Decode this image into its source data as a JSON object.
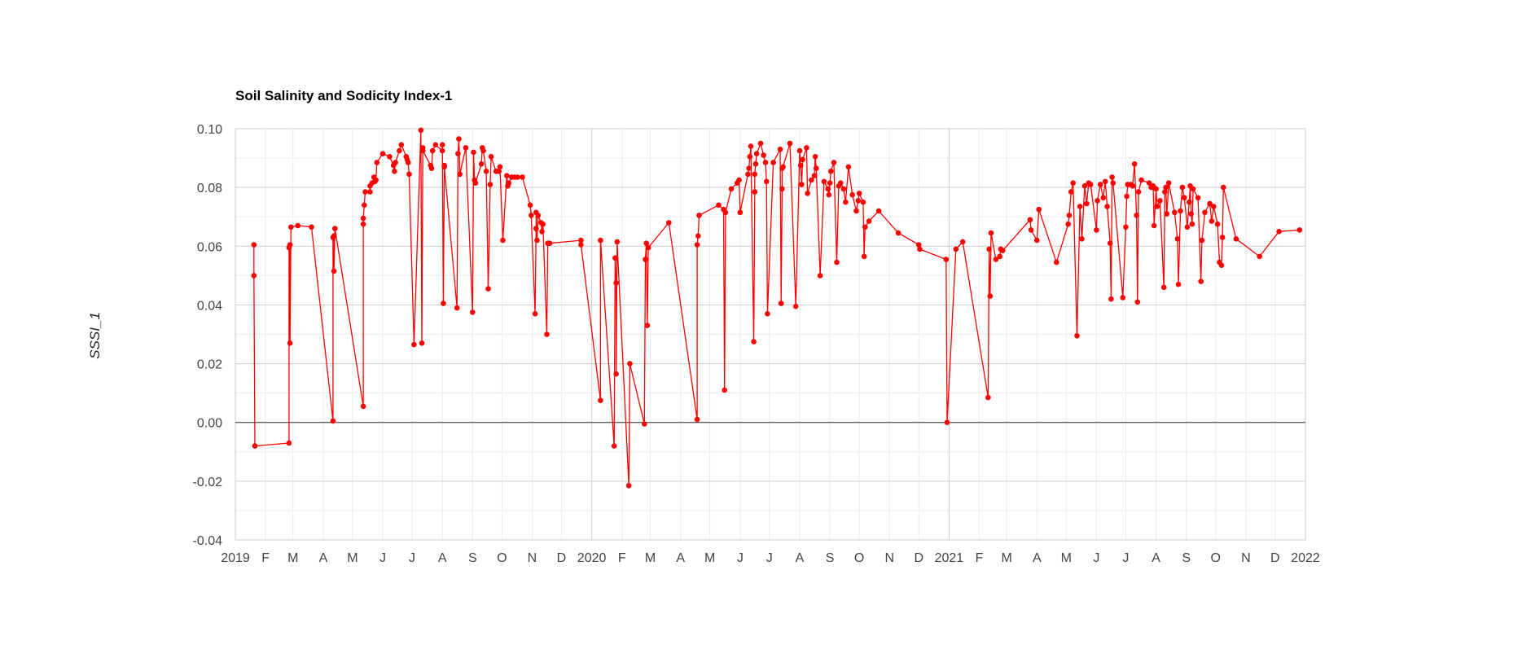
{
  "chart_data": {
    "type": "line",
    "title": "Soil Salinity and Sodicity Index-1",
    "xlabel": "",
    "ylabel": "SSSI_1",
    "xlim": [
      "2019-01-01",
      "2022-01-01"
    ],
    "ylim": [
      -0.04,
      0.1
    ],
    "y_ticks": [
      "0.10",
      "0.08",
      "0.06",
      "0.04",
      "0.02",
      "0.00",
      "-0.02",
      "-0.04"
    ],
    "x_ticks": [
      {
        "date": "2019-01-01",
        "label": "2019"
      },
      {
        "date": "2019-02-01",
        "label": "F"
      },
      {
        "date": "2019-03-01",
        "label": "M"
      },
      {
        "date": "2019-04-01",
        "label": "A"
      },
      {
        "date": "2019-05-01",
        "label": "M"
      },
      {
        "date": "2019-06-01",
        "label": "J"
      },
      {
        "date": "2019-07-01",
        "label": "J"
      },
      {
        "date": "2019-08-01",
        "label": "A"
      },
      {
        "date": "2019-09-01",
        "label": "S"
      },
      {
        "date": "2019-10-01",
        "label": "O"
      },
      {
        "date": "2019-11-01",
        "label": "N"
      },
      {
        "date": "2019-12-01",
        "label": "D"
      },
      {
        "date": "2020-01-01",
        "label": "2020"
      },
      {
        "date": "2020-02-01",
        "label": "F"
      },
      {
        "date": "2020-03-01",
        "label": "M"
      },
      {
        "date": "2020-04-01",
        "label": "A"
      },
      {
        "date": "2020-05-01",
        "label": "M"
      },
      {
        "date": "2020-06-01",
        "label": "J"
      },
      {
        "date": "2020-07-01",
        "label": "J"
      },
      {
        "date": "2020-08-01",
        "label": "A"
      },
      {
        "date": "2020-09-01",
        "label": "S"
      },
      {
        "date": "2020-10-01",
        "label": "O"
      },
      {
        "date": "2020-11-01",
        "label": "N"
      },
      {
        "date": "2020-12-01",
        "label": "D"
      },
      {
        "date": "2021-01-01",
        "label": "2021"
      },
      {
        "date": "2021-02-01",
        "label": "F"
      },
      {
        "date": "2021-03-01",
        "label": "M"
      },
      {
        "date": "2021-04-01",
        "label": "A"
      },
      {
        "date": "2021-05-01",
        "label": "M"
      },
      {
        "date": "2021-06-01",
        "label": "J"
      },
      {
        "date": "2021-07-01",
        "label": "J"
      },
      {
        "date": "2021-08-01",
        "label": "A"
      },
      {
        "date": "2021-09-01",
        "label": "S"
      },
      {
        "date": "2021-10-01",
        "label": "O"
      },
      {
        "date": "2021-11-01",
        "label": "N"
      },
      {
        "date": "2021-12-01",
        "label": "D"
      },
      {
        "date": "2022-01-01",
        "label": "2022"
      }
    ],
    "grid": true,
    "legend": "none",
    "series": [
      {
        "color": "#ff0000",
        "x": [
          "2019-01-20",
          "2019-01-20",
          "2019-01-21",
          "2019-02-25",
          "2019-02-25",
          "2019-02-26",
          "2019-02-26",
          "2019-02-27",
          "2019-03-06",
          "2019-03-20",
          "2019-04-11",
          "2019-04-11",
          "2019-04-12",
          "2019-04-12",
          "2019-04-13",
          "2019-05-12",
          "2019-05-12",
          "2019-05-12",
          "2019-05-13",
          "2019-05-14",
          "2019-05-19",
          "2019-05-19",
          "2019-05-21",
          "2019-05-23",
          "2019-05-24",
          "2019-05-25",
          "2019-05-26",
          "2019-06-01",
          "2019-06-08",
          "2019-06-12",
          "2019-06-13",
          "2019-06-14",
          "2019-06-18",
          "2019-06-20",
          "2019-06-25",
          "2019-06-26",
          "2019-06-27",
          "2019-06-28",
          "2019-07-03",
          "2019-07-10",
          "2019-07-11",
          "2019-07-12",
          "2019-07-12",
          "2019-07-20",
          "2019-07-21",
          "2019-07-22",
          "2019-07-25",
          "2019-08-01",
          "2019-08-01",
          "2019-08-02",
          "2019-08-03",
          "2019-08-03",
          "2019-08-16",
          "2019-08-17",
          "2019-08-18",
          "2019-08-19",
          "2019-08-25",
          "2019-09-01",
          "2019-09-02",
          "2019-09-03",
          "2019-09-04",
          "2019-09-10",
          "2019-09-11",
          "2019-09-12",
          "2019-09-15",
          "2019-09-17",
          "2019-09-19",
          "2019-09-20",
          "2019-09-25",
          "2019-09-28",
          "2019-09-29",
          "2019-10-02",
          "2019-10-06",
          "2019-10-07",
          "2019-10-08",
          "2019-10-11",
          "2019-10-14",
          "2019-10-17",
          "2019-10-22",
          "2019-10-30",
          "2019-10-31",
          "2019-11-04",
          "2019-11-05",
          "2019-11-05",
          "2019-11-06",
          "2019-11-07",
          "2019-11-10",
          "2019-11-11",
          "2019-11-12",
          "2019-11-16",
          "2019-11-17",
          "2019-11-19",
          "2019-12-21",
          "2019-12-21",
          "2020-01-10",
          "2020-01-10",
          "2020-01-24",
          "2020-01-25",
          "2020-01-26",
          "2020-01-26",
          "2020-01-27",
          "2020-02-08",
          "2020-02-09",
          "2020-02-24",
          "2020-02-25",
          "2020-02-26",
          "2020-02-27",
          "2020-02-28",
          "2020-03-20",
          "2020-04-18",
          "2020-04-18",
          "2020-04-19",
          "2020-04-20",
          "2020-05-10",
          "2020-05-15",
          "2020-05-16",
          "2020-05-17",
          "2020-05-23",
          "2020-05-29",
          "2020-05-31",
          "2020-06-01",
          "2020-06-09",
          "2020-06-10",
          "2020-06-11",
          "2020-06-12",
          "2020-06-15",
          "2020-06-16",
          "2020-06-16",
          "2020-06-17",
          "2020-06-18",
          "2020-06-22",
          "2020-06-25",
          "2020-06-27",
          "2020-06-28",
          "2020-06-29",
          "2020-07-05",
          "2020-07-12",
          "2020-07-13",
          "2020-07-14",
          "2020-07-14",
          "2020-07-15",
          "2020-07-22",
          "2020-07-28",
          "2020-08-01",
          "2020-08-02",
          "2020-08-03",
          "2020-08-04",
          "2020-08-08",
          "2020-08-09",
          "2020-08-13",
          "2020-08-16",
          "2020-08-17",
          "2020-08-18",
          "2020-08-22",
          "2020-08-26",
          "2020-08-30",
          "2020-08-31",
          "2020-09-01",
          "2020-09-02",
          "2020-09-05",
          "2020-09-08",
          "2020-09-10",
          "2020-09-12",
          "2020-09-15",
          "2020-09-17",
          "2020-09-20",
          "2020-09-24",
          "2020-09-28",
          "2020-09-30",
          "2020-10-01",
          "2020-10-05",
          "2020-10-06",
          "2020-10-07",
          "2020-10-11",
          "2020-10-21",
          "2020-11-10",
          "2020-12-01",
          "2020-12-02",
          "2020-12-29",
          "2020-12-30",
          "2021-01-08",
          "2021-01-15",
          "2021-02-10",
          "2021-02-11",
          "2021-02-12",
          "2021-02-13",
          "2021-02-18",
          "2021-02-22",
          "2021-02-23",
          "2021-02-25",
          "2021-03-25",
          "2021-03-26",
          "2021-04-01",
          "2021-04-03",
          "2021-04-21",
          "2021-05-03",
          "2021-05-04",
          "2021-05-06",
          "2021-05-08",
          "2021-05-12",
          "2021-05-15",
          "2021-05-17",
          "2021-05-20",
          "2021-05-22",
          "2021-05-24",
          "2021-05-26",
          "2021-06-01",
          "2021-06-02",
          "2021-06-05",
          "2021-06-08",
          "2021-06-10",
          "2021-06-12",
          "2021-06-15",
          "2021-06-16",
          "2021-06-17",
          "2021-06-18",
          "2021-06-28",
          "2021-07-01",
          "2021-07-02",
          "2021-07-03",
          "2021-07-06",
          "2021-07-08",
          "2021-07-10",
          "2021-07-12",
          "2021-07-13",
          "2021-07-14",
          "2021-07-17",
          "2021-07-25",
          "2021-07-27",
          "2021-07-29",
          "2021-07-30",
          "2021-08-01",
          "2021-08-02",
          "2021-08-05",
          "2021-08-09",
          "2021-08-10",
          "2021-08-11",
          "2021-08-12",
          "2021-08-14",
          "2021-08-20",
          "2021-08-23",
          "2021-08-24",
          "2021-08-26",
          "2021-08-28",
          "2021-08-30",
          "2021-09-02",
          "2021-09-04",
          "2021-09-05",
          "2021-09-06",
          "2021-09-07",
          "2021-09-08",
          "2021-09-13",
          "2021-09-16",
          "2021-09-17",
          "2021-09-20",
          "2021-09-25",
          "2021-09-27",
          "2021-09-29",
          "2021-10-03",
          "2021-10-05",
          "2021-10-07",
          "2021-10-08",
          "2021-10-09",
          "2021-10-22",
          "2021-11-15",
          "2021-12-05",
          "2021-12-26"
        ],
        "y": [
          0.0605,
          0.05,
          -0.008,
          -0.007,
          0.0595,
          0.0605,
          0.027,
          0.0665,
          0.067,
          0.0665,
          0.0005,
          0.063,
          0.0635,
          0.0515,
          0.066,
          0.0055,
          0.0675,
          0.0695,
          0.074,
          0.0785,
          0.0785,
          0.0805,
          0.0815,
          0.0835,
          0.082,
          0.0825,
          0.0885,
          0.0915,
          0.0905,
          0.0875,
          0.0855,
          0.0885,
          0.0925,
          0.0945,
          0.0905,
          0.0895,
          0.0885,
          0.0845,
          0.0265,
          0.0995,
          0.027,
          0.0935,
          0.0925,
          0.0875,
          0.0865,
          0.0925,
          0.0945,
          0.0925,
          0.0945,
          0.0405,
          0.0875,
          0.087,
          0.039,
          0.0915,
          0.0965,
          0.0845,
          0.0935,
          0.0375,
          0.092,
          0.0825,
          0.0815,
          0.088,
          0.0935,
          0.0925,
          0.0855,
          0.0455,
          0.081,
          0.0905,
          0.0855,
          0.0855,
          0.087,
          0.062,
          0.084,
          0.0805,
          0.0815,
          0.0835,
          0.0835,
          0.0835,
          0.0835,
          0.074,
          0.0705,
          0.037,
          0.066,
          0.0715,
          0.062,
          0.0705,
          0.068,
          0.065,
          0.0675,
          0.03,
          0.061,
          0.061,
          0.062,
          0.0605,
          0.0075,
          0.062,
          -0.008,
          0.056,
          0.0475,
          0.0165,
          0.0615,
          -0.0215,
          0.02,
          -0.0005,
          0.0555,
          0.061,
          0.033,
          0.0595,
          0.068,
          0.001,
          0.0605,
          0.0635,
          0.0705,
          0.074,
          0.0725,
          0.011,
          0.0715,
          0.0795,
          0.0815,
          0.0825,
          0.0715,
          0.0845,
          0.0865,
          0.0905,
          0.094,
          0.0275,
          0.0785,
          0.0845,
          0.088,
          0.0915,
          0.095,
          0.091,
          0.0885,
          0.082,
          0.037,
          0.0885,
          0.093,
          0.0405,
          0.0795,
          0.0865,
          0.087,
          0.095,
          0.0395,
          0.0925,
          0.0875,
          0.081,
          0.0895,
          0.0935,
          0.078,
          0.0825,
          0.084,
          0.0905,
          0.0865,
          0.05,
          0.082,
          0.0795,
          0.0775,
          0.0815,
          0.0855,
          0.0885,
          0.0545,
          0.0805,
          0.0815,
          0.0795,
          0.075,
          0.087,
          0.0775,
          0.072,
          0.0755,
          0.078,
          0.075,
          0.0565,
          0.0665,
          0.0685,
          0.072,
          0.0645,
          0.0605,
          0.059,
          0.0555,
          0.0,
          0.059,
          0.0615,
          0.0085,
          0.059,
          0.043,
          0.0645,
          0.0555,
          0.0565,
          0.059,
          0.0585,
          0.069,
          0.0655,
          0.062,
          0.0725,
          0.0545,
          0.0675,
          0.0705,
          0.0785,
          0.0815,
          0.0295,
          0.0735,
          0.0625,
          0.0805,
          0.0745,
          0.0815,
          0.081,
          0.0655,
          0.0755,
          0.081,
          0.0765,
          0.082,
          0.0735,
          0.061,
          0.042,
          0.0835,
          0.0815,
          0.0425,
          0.0665,
          0.077,
          0.081,
          0.081,
          0.0805,
          0.088,
          0.0705,
          0.041,
          0.0785,
          0.0825,
          0.0815,
          0.08,
          0.0805,
          0.067,
          0.0795,
          0.0735,
          0.0755,
          0.046,
          0.0785,
          0.08,
          0.071,
          0.0815,
          0.0715,
          0.0625,
          0.047,
          0.072,
          0.08,
          0.0765,
          0.0665,
          0.075,
          0.0805,
          0.071,
          0.0675,
          0.0795,
          0.0765,
          0.048,
          0.062,
          0.0715,
          0.0745,
          0.0685,
          0.0735,
          0.0675,
          0.0545,
          0.0535,
          0.063,
          0.08,
          0.0625,
          0.0565,
          0.065,
          0.0655
        ]
      }
    ]
  }
}
